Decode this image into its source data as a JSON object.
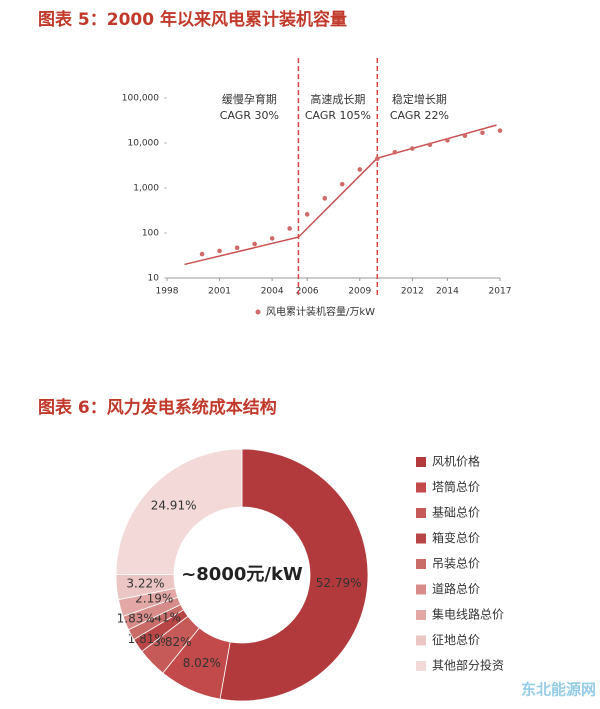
{
  "chart_data": [
    {
      "type": "scatter",
      "title": "图表 5：2000 年以来风电累计装机容量",
      "xlim": [
        1998,
        2017
      ],
      "xticks": [
        1998,
        2001,
        2004,
        2006,
        2009,
        2012,
        2014,
        2017
      ],
      "ylim": [
        10,
        100000
      ],
      "y_scale": "log",
      "yticks": [
        10,
        100,
        {
          "value": 1000,
          "label": "1,000"
        },
        {
          "value": 10000,
          "label": "10,000"
        },
        {
          "value": 100000,
          "label": "100,000"
        }
      ],
      "series": [
        {
          "name": "风电累计装机容量/万kW",
          "color": "#d06a68",
          "x": [
            2000,
            2001,
            2002,
            2003,
            2004,
            2005,
            2006,
            2007,
            2008,
            2009,
            2010,
            2011,
            2012,
            2013,
            2014,
            2015,
            2016,
            2017
          ],
          "values": [
            34,
            40,
            47,
            57,
            76,
            126,
            260,
            590,
            1220,
            2580,
            4470,
            6240,
            7530,
            9140,
            11460,
            14530,
            16870,
            18800
          ]
        }
      ],
      "trend": {
        "color": "#c9504f",
        "x": [
          1999,
          2005.5,
          2010,
          2016.8
        ],
        "values": [
          20,
          81,
          4600,
          25000
        ]
      },
      "dividers": [
        2005.5,
        2010
      ],
      "divider_color": "#d9463d",
      "phases": [
        {
          "label": "缓慢孕育期",
          "cagr": "CAGR 30%"
        },
        {
          "label": "高速成长期",
          "cagr": "CAGR 105%"
        },
        {
          "label": "稳定增长期",
          "cagr": "CAGR 22%"
        }
      ]
    },
    {
      "type": "donut",
      "title": "图表 6：风力发电系统成本结构",
      "center_label": "~8000元/kW",
      "categories": [
        "风机价格",
        "塔筒总价",
        "基础总价",
        "箱变总价",
        "吊装总价",
        "道路总价",
        "集电线路总价",
        "征地总价",
        "其他部分投资"
      ],
      "values": [
        52.79,
        8.02,
        3.82,
        1.81,
        1.41,
        1.83,
        2.19,
        3.22,
        24.91
      ],
      "value_labels": [
        "52.79%",
        "8.02%",
        "3.82%",
        "1.81%",
        "1.41%",
        "1.83%",
        "2.19%",
        "3.22%",
        "24.91%"
      ],
      "colors": [
        "#b23a3c",
        "#c24a4a",
        "#c65a58",
        "#b84646",
        "#c96c68",
        "#d88c8a",
        "#e3a8a6",
        "#ecc6c5",
        "#f3dad9"
      ]
    }
  ],
  "watermark": "东北能源网"
}
